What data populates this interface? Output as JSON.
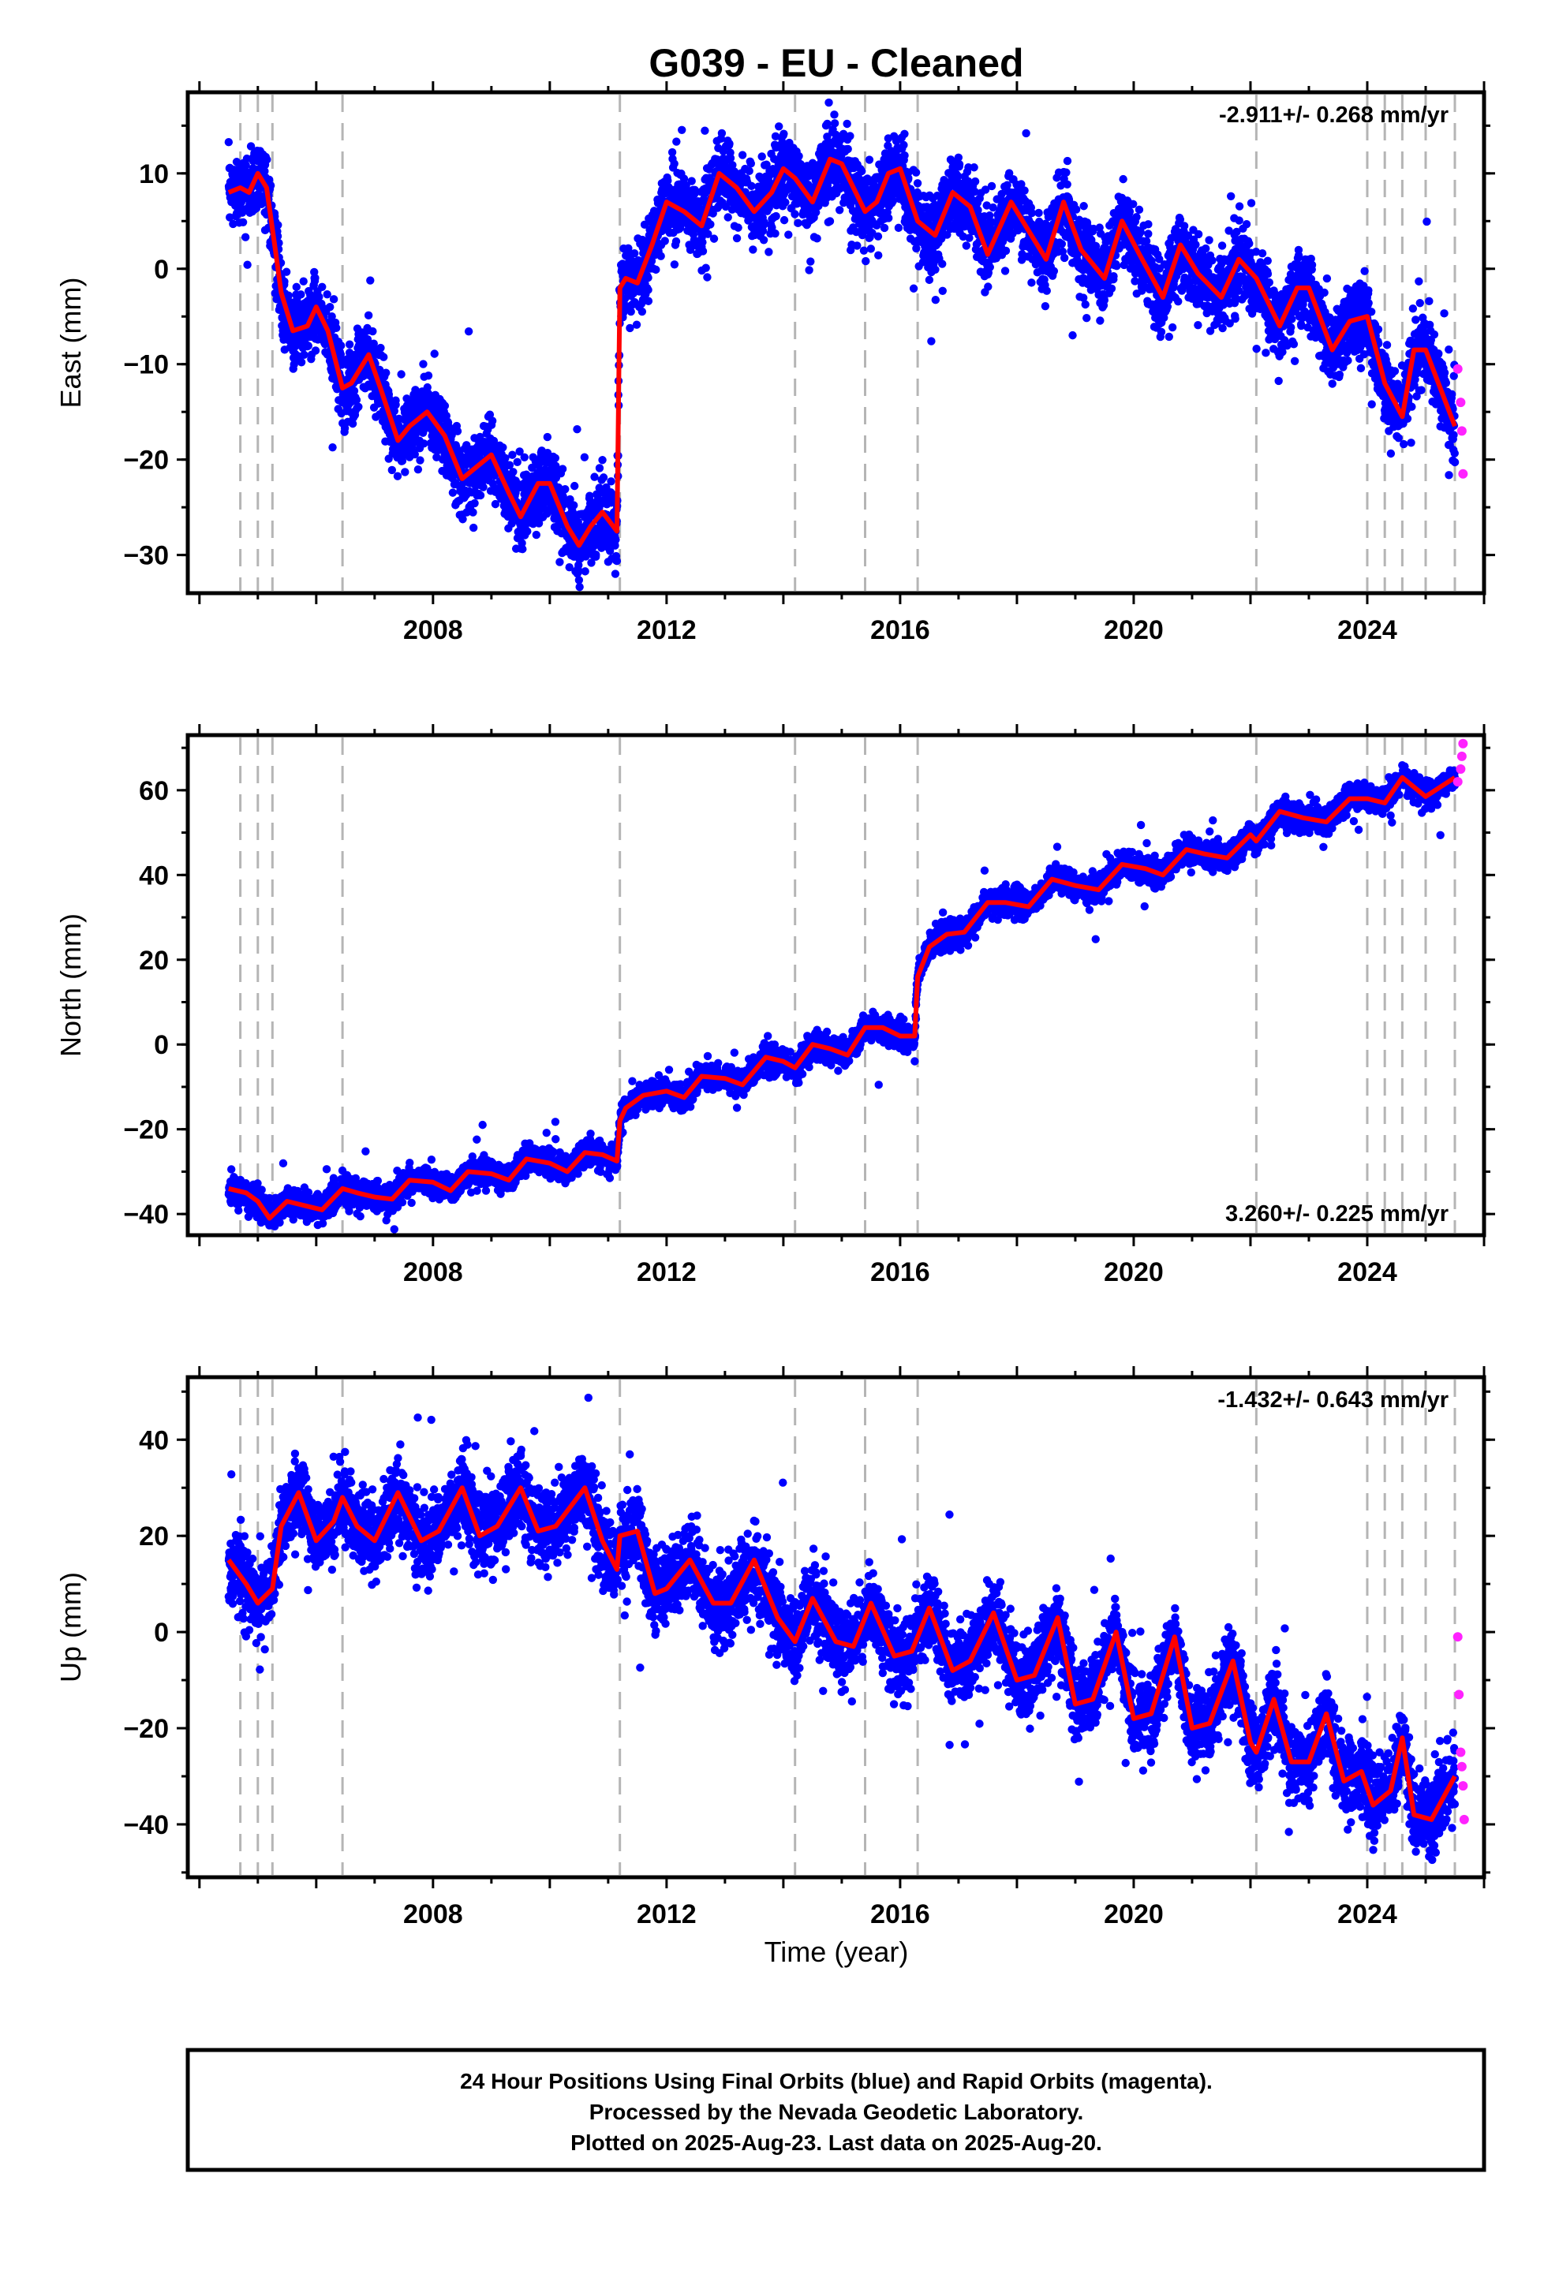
{
  "title": "G039  - EU - Cleaned",
  "chart_data": {
    "type": "scatter",
    "xlabel": "Time (year)",
    "xlim": [
      2003.8,
      2026.0
    ],
    "xticks": [
      2008,
      2012,
      2016,
      2020,
      2024
    ],
    "break_epochs": [
      2004.7,
      2005.0,
      2005.25,
      2006.45,
      2011.2,
      2014.2,
      2015.4,
      2016.3,
      2022.1,
      2024.0,
      2024.3,
      2024.6,
      2025.0,
      2025.5
    ],
    "final_orbit_color": "#0000ff",
    "rapid_orbit_color": "#ff22ff",
    "model_color": "#ff0000",
    "panels": [
      {
        "id": "east",
        "ylabel": "East (mm)",
        "ylim": [
          -34,
          18.5
        ],
        "yticks": [
          -30,
          -20,
          -10,
          0,
          10
        ],
        "rate_label": "-2.911+/- 0.268 mm/yr",
        "rate_position": "top-right",
        "scatter_sd": 1.9,
        "model": {
          "x": [
            2004.5,
            2004.7,
            2004.85,
            2005.0,
            2005.15,
            2005.3,
            2005.4,
            2005.6,
            2005.85,
            2006.0,
            2006.2,
            2006.45,
            2006.6,
            2006.9,
            2007.1,
            2007.4,
            2007.6,
            2007.9,
            2008.2,
            2008.5,
            2008.8,
            2009.0,
            2009.3,
            2009.5,
            2009.8,
            2010.0,
            2010.3,
            2010.5,
            2010.7,
            2010.9,
            2011.15,
            2011.2,
            2011.3,
            2011.5,
            2011.75,
            2012.0,
            2012.3,
            2012.6,
            2012.9,
            2013.2,
            2013.5,
            2013.8,
            2014.0,
            2014.2,
            2014.5,
            2014.8,
            2015.0,
            2015.4,
            2015.6,
            2015.8,
            2016.0,
            2016.3,
            2016.6,
            2016.9,
            2017.2,
            2017.5,
            2017.9,
            2018.2,
            2018.5,
            2018.8,
            2019.1,
            2019.5,
            2019.8,
            2020.1,
            2020.5,
            2020.8,
            2021.1,
            2021.5,
            2021.8,
            2022.1,
            2022.5,
            2022.8,
            2023.0,
            2023.4,
            2023.7,
            2024.0,
            2024.3,
            2024.6,
            2024.8,
            2025.0,
            2025.5
          ],
          "y": [
            8.0,
            8.5,
            8.0,
            10.0,
            8.5,
            2.0,
            -2.5,
            -6.5,
            -6.0,
            -4.0,
            -6.5,
            -12.5,
            -12.0,
            -9.0,
            -12.5,
            -18.0,
            -16.5,
            -15.0,
            -17.5,
            -22.0,
            -20.5,
            -19.5,
            -23.5,
            -26.0,
            -22.5,
            -22.5,
            -27.0,
            -29.0,
            -27.0,
            -25.5,
            -27.5,
            -2.0,
            -1.0,
            -1.5,
            2.5,
            7.0,
            6.0,
            4.5,
            10.0,
            8.5,
            6.0,
            8.0,
            10.5,
            9.5,
            7.0,
            11.5,
            11.0,
            6.0,
            7.0,
            10.0,
            10.5,
            5.0,
            3.5,
            8.0,
            6.5,
            1.5,
            7.0,
            4.0,
            1.0,
            7.0,
            2.0,
            -1.0,
            5.0,
            1.5,
            -3.0,
            2.5,
            -0.5,
            -3.0,
            1.0,
            -1.0,
            -6.0,
            -2.0,
            -2.0,
            -8.5,
            -5.5,
            -5.0,
            -12.0,
            -15.5,
            -8.5,
            -8.5,
            -16.5
          ]
        },
        "rapid": {
          "x": [
            2025.55,
            2025.6,
            2025.62,
            2025.64
          ],
          "y": [
            -10.5,
            -14.0,
            -17.0,
            -21.5
          ]
        }
      },
      {
        "id": "north",
        "ylabel": "North (mm)",
        "ylim": [
          -45,
          73
        ],
        "yticks": [
          -40,
          -20,
          0,
          20,
          40,
          60
        ],
        "rate_label": "3.260+/- 0.225 mm/yr",
        "rate_position": "bottom-right",
        "scatter_sd": 1.5,
        "model": {
          "x": [
            2004.5,
            2004.8,
            2005.0,
            2005.2,
            2005.5,
            2005.8,
            2006.1,
            2006.45,
            2006.7,
            2007.0,
            2007.3,
            2007.6,
            2008.0,
            2008.3,
            2008.6,
            2009.0,
            2009.3,
            2009.6,
            2010.0,
            2010.3,
            2010.6,
            2010.9,
            2011.15,
            2011.2,
            2011.3,
            2011.6,
            2012.0,
            2012.3,
            2012.6,
            2013.0,
            2013.3,
            2013.7,
            2014.0,
            2014.2,
            2014.5,
            2014.8,
            2015.1,
            2015.4,
            2015.7,
            2016.0,
            2016.25,
            2016.3,
            2016.5,
            2016.8,
            2017.1,
            2017.5,
            2017.8,
            2018.2,
            2018.6,
            2019.0,
            2019.4,
            2019.8,
            2020.2,
            2020.5,
            2020.9,
            2021.2,
            2021.6,
            2022.0,
            2022.1,
            2022.5,
            2022.9,
            2023.3,
            2023.7,
            2024.0,
            2024.3,
            2024.6,
            2025.0,
            2025.5
          ],
          "y": [
            -34.0,
            -35.0,
            -37.0,
            -41.0,
            -37.0,
            -38.0,
            -39.0,
            -34.0,
            -35.0,
            -36.0,
            -36.5,
            -32.0,
            -32.5,
            -34.5,
            -30.0,
            -30.5,
            -32.0,
            -27.0,
            -28.0,
            -30.0,
            -25.5,
            -26.0,
            -27.5,
            -18.0,
            -15.0,
            -12.0,
            -11.0,
            -12.5,
            -7.5,
            -8.0,
            -9.5,
            -3.0,
            -4.0,
            -5.5,
            0.0,
            -1.0,
            -2.5,
            4.0,
            4.0,
            2.0,
            2.0,
            16.0,
            23.0,
            26.0,
            26.5,
            33.5,
            33.5,
            32.5,
            39.0,
            37.5,
            36.5,
            42.5,
            41.5,
            40.0,
            46.0,
            45.0,
            44.0,
            49.5,
            48.0,
            55.0,
            53.5,
            52.5,
            58.0,
            58.0,
            57.0,
            63.0,
            58.5,
            63.0
          ]
        },
        "rapid": {
          "x": [
            2025.55,
            2025.6,
            2025.62,
            2025.64
          ],
          "y": [
            62.0,
            65.0,
            68.0,
            71.0
          ]
        }
      },
      {
        "id": "up",
        "ylabel": "Up (mm)",
        "ylim": [
          -51,
          53
        ],
        "yticks": [
          -40,
          -20,
          0,
          20,
          40
        ],
        "rate_label": "-1.432+/- 0.643 mm/yr",
        "rate_position": "top-right",
        "scatter_sd": 4.0,
        "model": {
          "x": [
            2004.5,
            2004.8,
            2005.0,
            2005.25,
            2005.4,
            2005.7,
            2006.0,
            2006.3,
            2006.45,
            2006.7,
            2007.0,
            2007.4,
            2007.8,
            2008.1,
            2008.5,
            2008.8,
            2009.1,
            2009.5,
            2009.8,
            2010.1,
            2010.6,
            2010.9,
            2011.15,
            2011.2,
            2011.5,
            2011.8,
            2012.0,
            2012.4,
            2012.8,
            2013.1,
            2013.5,
            2013.9,
            2014.2,
            2014.5,
            2014.9,
            2015.2,
            2015.5,
            2015.9,
            2016.2,
            2016.5,
            2016.9,
            2017.2,
            2017.6,
            2018.0,
            2018.3,
            2018.7,
            2019.0,
            2019.3,
            2019.7,
            2020.0,
            2020.3,
            2020.7,
            2021.0,
            2021.3,
            2021.7,
            2022.0,
            2022.1,
            2022.4,
            2022.7,
            2023.0,
            2023.3,
            2023.6,
            2023.9,
            2024.1,
            2024.4,
            2024.6,
            2024.8,
            2025.1,
            2025.5
          ],
          "y": [
            15.0,
            10.0,
            6.0,
            9.0,
            22.0,
            29.0,
            19.0,
            23.0,
            28.0,
            22.0,
            19.0,
            29.0,
            19.0,
            21.0,
            30.0,
            20.0,
            22.0,
            30.0,
            21.0,
            22.0,
            30.0,
            19.0,
            13.0,
            20.0,
            21.0,
            8.0,
            9.0,
            15.0,
            6.0,
            6.0,
            15.0,
            3.0,
            -2.0,
            7.0,
            -2.0,
            -3.0,
            6.0,
            -5.0,
            -4.0,
            5.0,
            -8.0,
            -6.0,
            4.0,
            -10.0,
            -9.0,
            3.0,
            -15.0,
            -14.0,
            0.0,
            -18.0,
            -17.0,
            -1.0,
            -20.0,
            -19.0,
            -6.0,
            -23.0,
            -25.0,
            -14.0,
            -27.0,
            -27.0,
            -17.0,
            -31.0,
            -29.0,
            -36.0,
            -33.0,
            -22.0,
            -38.0,
            -39.0,
            -30.0
          ]
        },
        "rapid": {
          "x": [
            2025.55,
            2025.57,
            2025.6,
            2025.62,
            2025.64,
            2025.66
          ],
          "y": [
            -1.0,
            -13.0,
            -25.0,
            -28.0,
            -32.0,
            -39.0
          ]
        }
      }
    ]
  },
  "footer": {
    "line1": "24 Hour Positions Using Final Orbits (blue) and Rapid Orbits (magenta).",
    "line2": "Processed by the Nevada Geodetic Laboratory.",
    "line3": "Plotted on 2025-Aug-23. Last data on 2025-Aug-20."
  }
}
